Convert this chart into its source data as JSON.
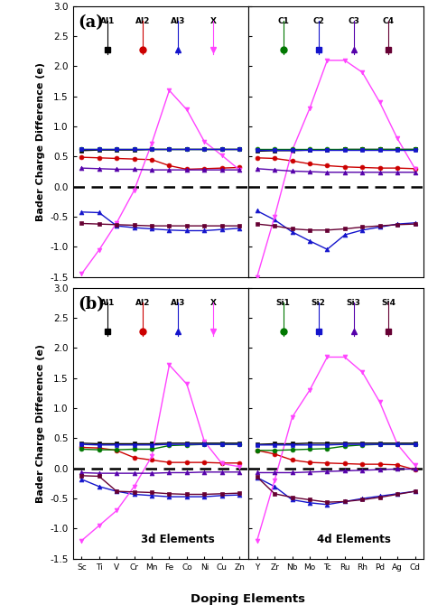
{
  "panel_a_left_elements": [
    "Sc",
    "Ti",
    "V",
    "Cr",
    "Mn",
    "Fe",
    "Co",
    "Ni",
    "Cu",
    "Zn"
  ],
  "panel_a_right_elements": [
    "Y",
    "Zr",
    "Nb",
    "Mo",
    "Tc",
    "Ru",
    "Rh",
    "Pd",
    "Ag",
    "Cd"
  ],
  "panel_a_left": {
    "Al1": [
      0.6,
      0.61,
      0.61,
      0.61,
      0.62,
      0.62,
      0.62,
      0.62,
      0.62,
      0.62
    ],
    "Al2": [
      0.49,
      0.48,
      0.47,
      0.46,
      0.45,
      0.35,
      0.29,
      0.3,
      0.31,
      0.32
    ],
    "Al3": [
      -0.42,
      -0.43,
      -0.65,
      -0.68,
      -0.7,
      -0.72,
      -0.73,
      -0.73,
      -0.71,
      -0.69
    ],
    "X": [
      -1.45,
      -1.05,
      -0.6,
      -0.06,
      0.72,
      1.6,
      1.28,
      0.75,
      0.52,
      0.28
    ],
    "C1": [
      0.63,
      0.63,
      0.63,
      0.63,
      0.63,
      0.63,
      0.63,
      0.63,
      0.63,
      0.63
    ],
    "C2": [
      0.62,
      0.62,
      0.62,
      0.62,
      0.62,
      0.62,
      0.62,
      0.62,
      0.62,
      0.62
    ],
    "C3": [
      0.31,
      0.3,
      0.29,
      0.29,
      0.28,
      0.28,
      0.28,
      0.28,
      0.28,
      0.28
    ],
    "C4": [
      -0.61,
      -0.62,
      -0.63,
      -0.64,
      -0.65,
      -0.65,
      -0.65,
      -0.65,
      -0.65,
      -0.65
    ]
  },
  "panel_a_right": {
    "Al1": [
      0.59,
      0.6,
      0.6,
      0.61,
      0.61,
      0.62,
      0.62,
      0.62,
      0.62,
      0.62
    ],
    "Al2": [
      0.48,
      0.47,
      0.43,
      0.38,
      0.35,
      0.33,
      0.32,
      0.31,
      0.31,
      0.3
    ],
    "Al3": [
      -0.4,
      -0.55,
      -0.75,
      -0.9,
      -1.04,
      -0.8,
      -0.72,
      -0.67,
      -0.62,
      -0.6
    ],
    "X": [
      -1.5,
      -0.5,
      0.6,
      1.3,
      2.1,
      2.1,
      1.9,
      1.4,
      0.8,
      0.3
    ],
    "C1": [
      0.62,
      0.62,
      0.62,
      0.62,
      0.62,
      0.62,
      0.62,
      0.62,
      0.62,
      0.62
    ],
    "C2": [
      0.61,
      0.61,
      0.61,
      0.61,
      0.61,
      0.61,
      0.61,
      0.61,
      0.61,
      0.61
    ],
    "C3": [
      0.3,
      0.28,
      0.26,
      0.25,
      0.24,
      0.24,
      0.24,
      0.24,
      0.24,
      0.24
    ],
    "C4": [
      -0.62,
      -0.65,
      -0.7,
      -0.72,
      -0.72,
      -0.7,
      -0.67,
      -0.65,
      -0.63,
      -0.62
    ]
  },
  "panel_b_left": {
    "Al1": [
      0.42,
      0.41,
      0.41,
      0.41,
      0.41,
      0.42,
      0.42,
      0.42,
      0.42,
      0.42
    ],
    "Al2": [
      0.35,
      0.34,
      0.3,
      0.18,
      0.14,
      0.1,
      0.1,
      0.1,
      0.09,
      0.09
    ],
    "Al3": [
      -0.18,
      -0.3,
      -0.38,
      -0.43,
      -0.45,
      -0.47,
      -0.47,
      -0.47,
      -0.45,
      -0.44
    ],
    "X": [
      -1.2,
      -0.95,
      -0.7,
      -0.3,
      0.2,
      1.72,
      1.4,
      0.45,
      0.08,
      0.03
    ],
    "Si1": [
      0.32,
      0.31,
      0.31,
      0.32,
      0.32,
      0.38,
      0.39,
      0.4,
      0.4,
      0.4
    ],
    "Si2": [
      0.4,
      0.39,
      0.39,
      0.39,
      0.39,
      0.4,
      0.4,
      0.4,
      0.4,
      0.4
    ],
    "Si3": [
      -0.07,
      -0.08,
      -0.08,
      -0.08,
      -0.08,
      -0.07,
      -0.07,
      -0.06,
      -0.06,
      -0.06
    ],
    "Si4": [
      -0.12,
      -0.13,
      -0.38,
      -0.39,
      -0.4,
      -0.42,
      -0.43,
      -0.43,
      -0.42,
      -0.41
    ]
  },
  "panel_b_right": {
    "Al1": [
      0.4,
      0.41,
      0.41,
      0.42,
      0.42,
      0.42,
      0.42,
      0.42,
      0.42,
      0.42
    ],
    "Al2": [
      0.3,
      0.24,
      0.14,
      0.1,
      0.09,
      0.08,
      0.07,
      0.07,
      0.06,
      -0.02
    ],
    "Al3": [
      -0.15,
      -0.3,
      -0.52,
      -0.57,
      -0.6,
      -0.55,
      -0.5,
      -0.46,
      -0.42,
      -0.38
    ],
    "X": [
      -1.2,
      -0.2,
      0.85,
      1.3,
      1.85,
      1.85,
      1.6,
      1.1,
      0.4,
      0.05
    ],
    "Si1": [
      0.3,
      0.3,
      0.31,
      0.32,
      0.33,
      0.37,
      0.39,
      0.4,
      0.4,
      0.4
    ],
    "Si2": [
      0.39,
      0.39,
      0.39,
      0.39,
      0.39,
      0.4,
      0.4,
      0.4,
      0.4,
      0.4
    ],
    "Si3": [
      -0.07,
      -0.07,
      -0.07,
      -0.06,
      -0.05,
      -0.04,
      -0.03,
      -0.02,
      -0.01,
      -0.01
    ],
    "Si4": [
      -0.14,
      -0.42,
      -0.48,
      -0.52,
      -0.56,
      -0.55,
      -0.52,
      -0.48,
      -0.43,
      -0.38
    ]
  },
  "series_colors": {
    "Al1": "#000000",
    "Al2": "#cc0000",
    "Al3": "#1414cc",
    "X": "#ff44ff",
    "C1": "#007700",
    "C2": "#1414cc",
    "C3": "#5500aa",
    "C4": "#660033",
    "Si1": "#007700",
    "Si2": "#1414cc",
    "Si3": "#5500aa",
    "Si4": "#660033"
  },
  "series_markers": {
    "Al1": "s",
    "Al2": "o",
    "Al3": "^",
    "X": "v",
    "C1": "o",
    "C2": "s",
    "C3": "^",
    "C4": "s",
    "Si1": "o",
    "Si2": "s",
    "Si3": "^",
    "Si4": "s"
  },
  "ylim": [
    -1.5,
    3.0
  ],
  "yticks": [
    -1.5,
    -1.0,
    -0.5,
    0.0,
    0.5,
    1.0,
    1.5,
    2.0,
    2.5,
    3.0
  ],
  "ylabel": "Bader Charge Difference (e)",
  "xlabel": "Doping Elements",
  "legend_a": [
    "Al1",
    "Al2",
    "Al3",
    "X",
    "C1",
    "C2",
    "C3",
    "C4"
  ],
  "legend_b": [
    "Al1",
    "Al2",
    "Al3",
    "X",
    "Si1",
    "Si2",
    "Si3",
    "Si4"
  ],
  "legend_a_labels": [
    "Al1",
    "Al2",
    "Al3",
    "X",
    "C1",
    "C2",
    "C3",
    "C4"
  ],
  "legend_b_labels": [
    "Al1",
    "Al2",
    "Al3",
    "X",
    "Si1",
    "Si2",
    "Si3",
    "Si4"
  ]
}
